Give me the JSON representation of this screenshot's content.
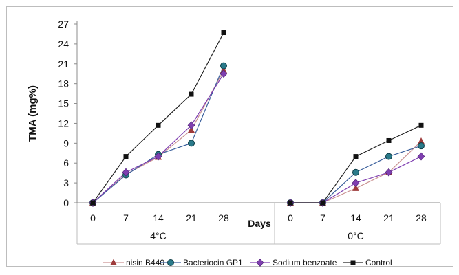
{
  "chart_data": {
    "type": "line",
    "title": "",
    "ylabel": "TMA (mg%)",
    "xlabel": "Days",
    "ylim": [
      0,
      27
    ],
    "yticks": [
      0,
      3,
      6,
      9,
      12,
      15,
      18,
      21,
      24,
      27
    ],
    "grid": false,
    "legend_position": "bottom",
    "groups": [
      {
        "label": "4°C",
        "categories": [
          "0",
          "7",
          "14",
          "21",
          "28"
        ]
      },
      {
        "label": "0°C",
        "categories": [
          "0",
          "7",
          "14",
          "21",
          "28"
        ]
      }
    ],
    "series": [
      {
        "name": "nisin B440",
        "marker": "triangle",
        "color": "#9e3b3b",
        "line_color": "#c99292",
        "groups": [
          [
            0,
            4.3,
            6.9,
            11.0,
            20.0
          ],
          [
            0,
            0,
            2.2,
            4.6,
            9.3
          ]
        ]
      },
      {
        "name": "Bacteriocin GP1",
        "marker": "circle",
        "color": "#2a7a8a",
        "line_color": "#3a5f9c",
        "groups": [
          [
            0,
            4.2,
            7.3,
            9.0,
            20.7
          ],
          [
            0,
            0,
            4.6,
            7.0,
            8.6
          ]
        ]
      },
      {
        "name": "Sodium benzoate",
        "marker": "diamond",
        "color": "#7f3fb0",
        "line_color": "#7f3fb0",
        "groups": [
          [
            0,
            4.6,
            7.0,
            11.7,
            19.5
          ],
          [
            0,
            0,
            3.0,
            4.6,
            7.0
          ]
        ]
      },
      {
        "name": "Control",
        "marker": "square",
        "color": "#111111",
        "line_color": "#222222",
        "groups": [
          [
            0,
            7.0,
            11.7,
            16.4,
            25.7
          ],
          [
            0,
            0,
            7.0,
            9.4,
            11.7
          ]
        ]
      }
    ]
  }
}
